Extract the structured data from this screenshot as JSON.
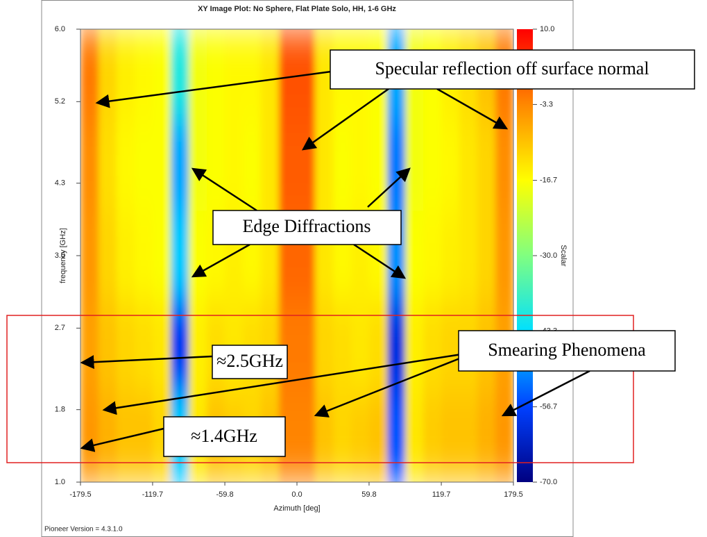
{
  "chart_data": {
    "type": "heatmap",
    "title": "XY Image Plot: No Sphere, Flat Plate Solo, HH, 1-6 GHz",
    "xlabel": "Azimuth [deg]",
    "ylabel": "frequency [GHz]",
    "colorbar_label": "Scalar",
    "footer": "Pioneer Version = 4.3.1.0",
    "xlim": [
      -179.5,
      179.5
    ],
    "xticks": [
      -179.5,
      -119.7,
      -59.8,
      {
        "value": 0,
        "label": "0.0"
      },
      59.8,
      119.7,
      179.5
    ],
    "ylim": [
      1,
      6
    ],
    "yticks": [
      {
        "value": 1,
        "label": "1.0"
      },
      1.8,
      2.7,
      3.5,
      4.3,
      5.2,
      {
        "value": 6,
        "label": "6.0"
      }
    ],
    "zlim": [
      -70,
      10
    ],
    "zticks": [
      {
        "value": 10,
        "label": "10.0"
      },
      -3.3,
      -16.7,
      {
        "value": -30,
        "label": "-30.0"
      },
      -43.3,
      -56.7,
      {
        "value": -70,
        "label": "-70.0"
      }
    ],
    "x": [
      -172.0,
      -157.1,
      -142.1,
      -127.2,
      -112.2,
      -97.3,
      -82.3,
      -67.4,
      -52.4,
      -37.5,
      -22.4,
      -7.5,
      7.5,
      22.4,
      37.5,
      52.4,
      67.4,
      82.3,
      97.3,
      112.2,
      127.2,
      142.1,
      157.1,
      172.0
    ],
    "y": [
      1.5,
      2.5,
      3.5,
      4.5,
      5.5
    ],
    "z": [
      [
        -5,
        -8,
        -10,
        -10,
        -12,
        -45,
        -14,
        -10,
        -11,
        -12,
        -10,
        -3,
        -3,
        -10,
        -12,
        -11,
        -10,
        -55,
        -14,
        -11,
        -10,
        -10,
        -8,
        -5
      ],
      [
        -6,
        -10,
        -12,
        -13,
        -14,
        -58,
        -15,
        -13,
        -14,
        -13,
        -12,
        -2,
        -2,
        -12,
        -13,
        -14,
        -13,
        -60,
        -15,
        -13,
        -12,
        -12,
        -10,
        -6
      ],
      [
        -5,
        -12,
        -15,
        -16,
        -17,
        -45,
        -17,
        -16,
        -15,
        -16,
        -14,
        0,
        0,
        -14,
        -16,
        -15,
        -16,
        -50,
        -17,
        -16,
        -15,
        -14,
        -12,
        -5
      ],
      [
        -4,
        -13,
        -16,
        -17,
        -17,
        -48,
        -18,
        -17,
        -16,
        -17,
        -14,
        1,
        1,
        -14,
        -17,
        -16,
        -17,
        -52,
        -18,
        -17,
        -16,
        -14,
        -12,
        -4
      ],
      [
        -2,
        -12,
        -15,
        -16,
        -17,
        -40,
        -18,
        -17,
        -16,
        -16,
        -14,
        2,
        2,
        -14,
        -16,
        -16,
        -17,
        -48,
        -18,
        -17,
        -15,
        -13,
        -10,
        -2
      ]
    ],
    "annotations": [
      "Specular reflection off surface normal",
      "Edge Diffractions",
      "≈2.5GHz",
      "Smearing Phenomena",
      "≈1.4GHz"
    ]
  }
}
